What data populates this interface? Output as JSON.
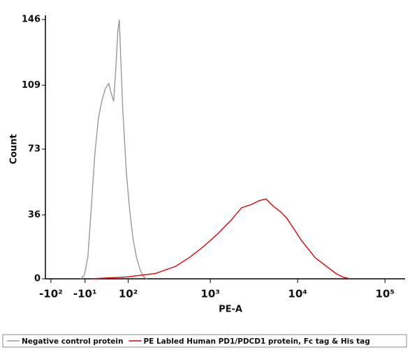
{
  "chart_data": {
    "type": "line",
    "xlabel": "PE-A",
    "ylabel": "Count",
    "xscale": "biexponential",
    "xlim": [
      -120,
      170000
    ],
    "ylim": [
      0,
      146
    ],
    "xticks": [
      {
        "value": -100,
        "label": "-10²"
      },
      {
        "value": -10,
        "label": "-10¹"
      },
      {
        "value": 100,
        "label": "10²"
      },
      {
        "value": 1000,
        "label": "10³"
      },
      {
        "value": 10000,
        "label": "10⁴"
      },
      {
        "value": 100000,
        "label": "10⁵"
      }
    ],
    "yticks": [
      0,
      36,
      73,
      109,
      146
    ],
    "series": [
      {
        "name": "Negative control protein",
        "color": "#999999",
        "x": [
          -19.3,
          -11.5,
          -3.8,
          3.8,
          11.5,
          19.3,
          27.2,
          35.4,
          43.9,
          49.1,
          56.4,
          62.0,
          67.9,
          71.9,
          76.0,
          82.4,
          93.6,
          105.4,
          117.8,
          131,
          146.6,
          163,
          180
        ],
        "values": [
          0,
          2,
          12,
          40,
          70,
          90,
          100,
          107,
          110,
          105,
          100,
          118,
          140,
          146,
          125,
          95,
          60,
          38,
          22,
          12,
          5,
          1,
          0
        ]
      },
      {
        "name": "PE Labled Human PD1/PDCD1 protein, Fc tag & His tag",
        "color": "#dd0000",
        "x": [
          3.8,
          93.6,
          228,
          396,
          573,
          828,
          1196,
          1730,
          2282,
          3006,
          3614,
          4346,
          5226,
          6283,
          7554,
          9081,
          10916,
          13124,
          15777,
          18967,
          22800,
          27410,
          32950,
          39620
        ],
        "values": [
          0,
          1,
          3,
          7,
          12,
          18,
          25,
          33,
          40,
          42,
          44,
          45,
          41,
          38,
          34,
          28,
          22,
          17,
          12,
          9,
          6,
          3,
          1,
          0
        ]
      }
    ]
  }
}
